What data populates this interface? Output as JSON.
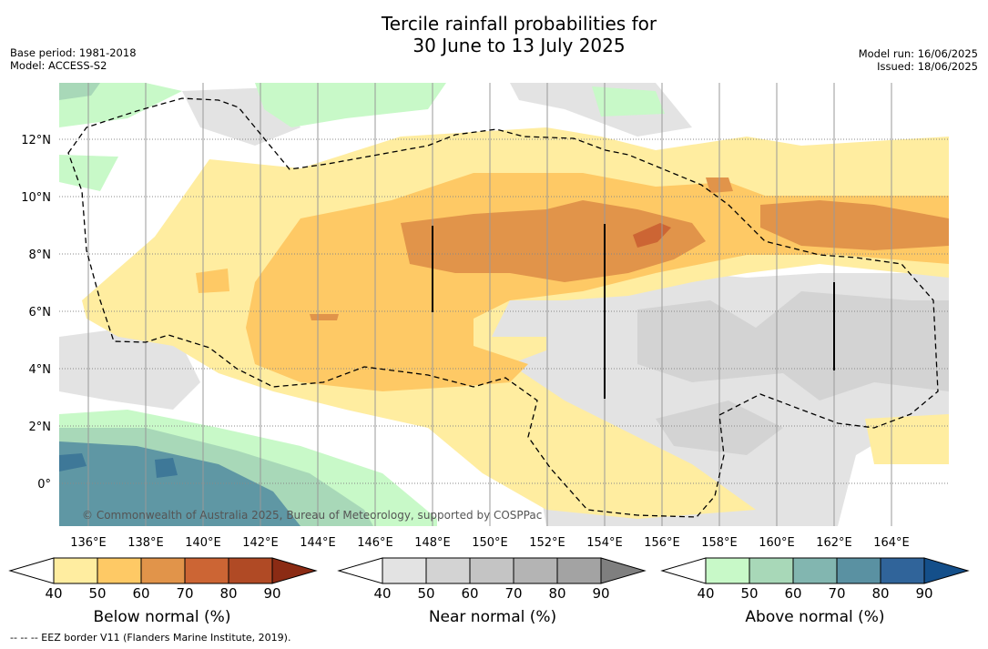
{
  "title_line1": "Tercile rainfall probabilities for",
  "title_line2": "30 June to 13 July 2025",
  "base_period": "Base period: 1981-2018",
  "model": "Model: ACCESS-S2",
  "model_run": "Model run: 16/06/2025",
  "issued": "Issued: 18/06/2025",
  "copyright": "© Commonwealth of Australia 2025, Bureau of Meteorology, supported by COSPPac",
  "footer": "--  --  -- EEZ border V11 (Flanders Marine Institute, 2019).",
  "lat_labels": [
    "12°N",
    "10°N",
    "8°N",
    "6°N",
    "4°N",
    "2°N",
    "0°"
  ],
  "lon_labels": [
    "136°E",
    "138°E",
    "140°E",
    "142°E",
    "144°E",
    "146°E",
    "148°E",
    "150°E",
    "152°E",
    "154°E",
    "156°E",
    "158°E",
    "160°E",
    "162°E",
    "164°E"
  ],
  "colorbars": {
    "below": {
      "label": "Below normal (%)",
      "ticks": [
        "40",
        "50",
        "60",
        "70",
        "80",
        "90"
      ],
      "colors": [
        "#ffeda0",
        "#fec965",
        "#e1944a",
        "#cc6534",
        "#b04a25",
        "#8b2b14"
      ]
    },
    "near": {
      "label": "Near normal (%)",
      "ticks": [
        "40",
        "50",
        "60",
        "70",
        "80",
        "90"
      ],
      "colors": [
        "#e3e3e3",
        "#d3d3d3",
        "#c4c4c4",
        "#b4b4b4",
        "#a3a3a3",
        "#7f7f7f"
      ]
    },
    "above": {
      "label": "Above normal (%)",
      "ticks": [
        "40",
        "50",
        "60",
        "70",
        "80",
        "90"
      ],
      "colors": [
        "#c8f9c8",
        "#a8d8b8",
        "#82b6b0",
        "#5a91a2",
        "#30649a",
        "#144f8a"
      ]
    }
  }
}
